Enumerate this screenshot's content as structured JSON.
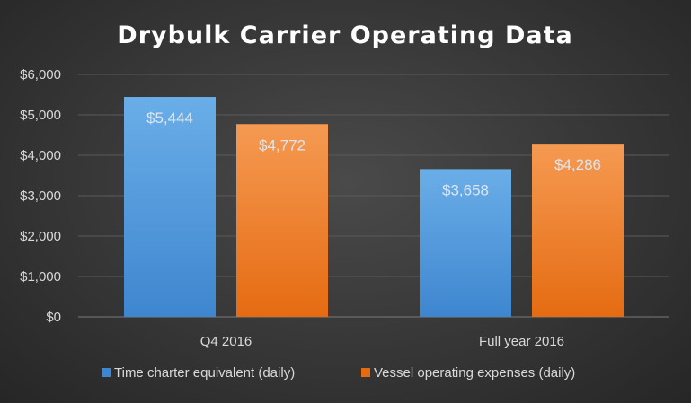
{
  "colors": {
    "series_blue_top": "#6aaee8",
    "series_blue_bottom": "#3e86cf",
    "series_orange_top": "#f59a52",
    "series_orange_bottom": "#e56b12",
    "gridline": "#5a5a5a",
    "axis": "#7a7a7a"
  },
  "chart_data": {
    "type": "bar",
    "title": "Drybulk Carrier Operating Data",
    "xlabel": "",
    "ylabel": "",
    "categories": [
      "Q4 2016",
      "Full year 2016"
    ],
    "series": [
      {
        "name": "Time charter equivalent (daily)",
        "values": [
          5444,
          3658
        ],
        "labels": [
          "$5,444",
          "$3,658"
        ]
      },
      {
        "name": "Vessel operating expenses (daily)",
        "values": [
          4772,
          4286
        ],
        "labels": [
          "$4,772",
          "$4,286"
        ]
      }
    ],
    "ylim": [
      0,
      6000
    ],
    "y_ticks": [
      0,
      1000,
      2000,
      3000,
      4000,
      5000,
      6000
    ],
    "y_tick_labels": [
      "$0",
      "$1,000",
      "$2,000",
      "$3,000",
      "$4,000",
      "$5,000",
      "$6,000"
    ],
    "grid": true,
    "legend_position": "bottom"
  }
}
